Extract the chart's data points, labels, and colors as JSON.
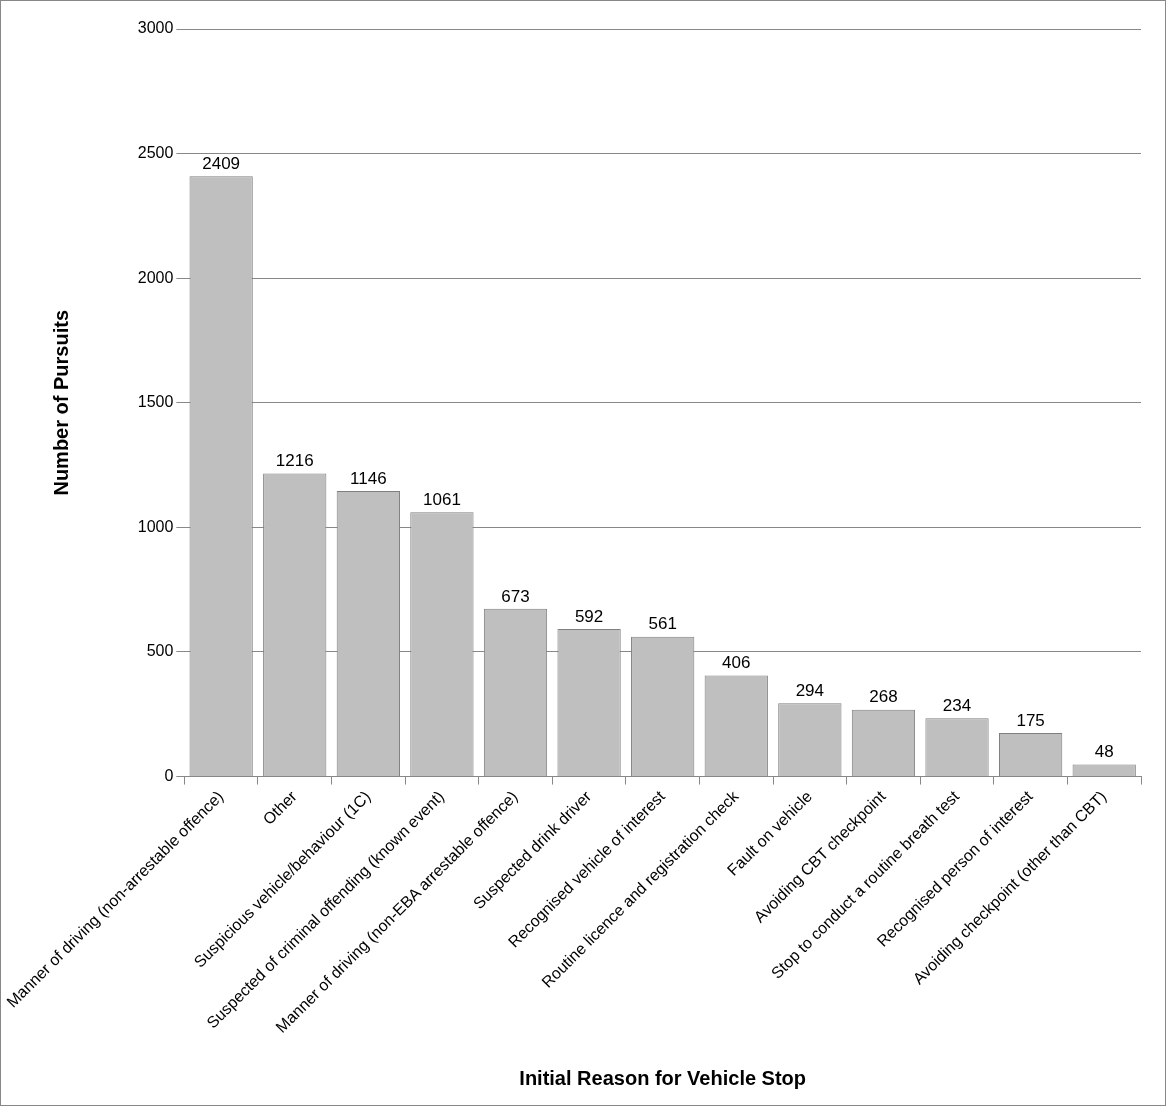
{
  "chart_data": {
    "type": "bar",
    "xlabel": "Initial Reason for Vehicle Stop",
    "ylabel": "Number of Pursuits",
    "categories": [
      "Manner of driving (non-arrestable offence)",
      "Other",
      "Suspicious vehicle/behaviour (1C)",
      "Suspected of criminal offending (known event)",
      "Manner of driving (non-EBA arrestable offence)",
      "Suspected drink driver",
      "Recognised vehicle of interest",
      "Routine licence and registration check",
      "Fault on vehicle",
      "Avoiding CBT checkpoint",
      "Stop to conduct a routine breath test",
      "Recognised person of interest",
      "Avoiding checkpoint (other than CBT)"
    ],
    "values": [
      2409,
      1216,
      1146,
      1061,
      673,
      592,
      561,
      406,
      294,
      268,
      234,
      175,
      48
    ],
    "color": "#bfbfbf",
    "ylim": [
      0,
      3000
    ],
    "yticks": [
      0,
      500,
      1000,
      1500,
      2000,
      2500,
      3000
    ],
    "grid": "y",
    "data_labels": true
  }
}
